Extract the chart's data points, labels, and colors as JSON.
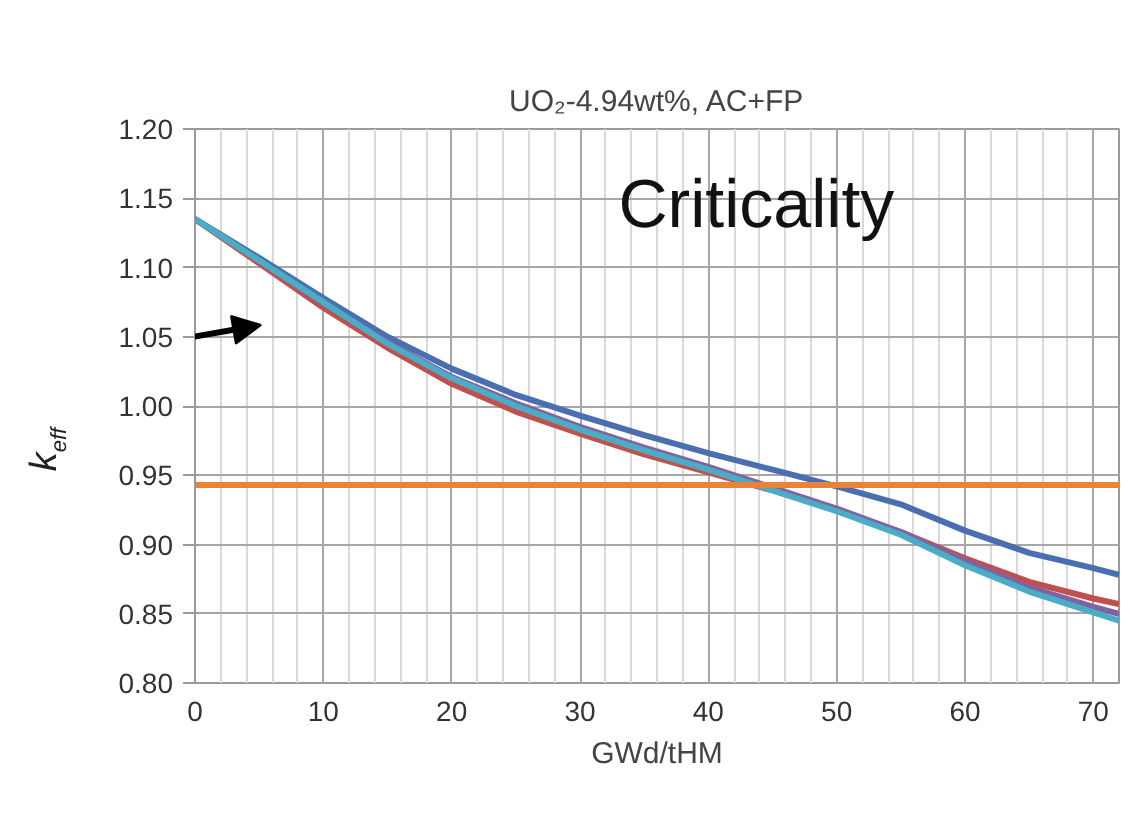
{
  "chart_data": {
    "type": "line",
    "title": "UO₂-4.94wt%, AC+FP",
    "xlabel": "GWd/tHM",
    "ylabel": "k$_{eff}$",
    "annotations": [
      "Criticality"
    ],
    "x": [
      0,
      5,
      10,
      15,
      20,
      25,
      30,
      35,
      40,
      45,
      50,
      55,
      60,
      65,
      70,
      72
    ],
    "series": [
      {
        "color": "#4a6fb0",
        "values": [
          1.135,
          1.107,
          1.078,
          1.05,
          1.027,
          1.008,
          0.993,
          0.979,
          0.966,
          0.954,
          0.942,
          0.929,
          0.91,
          0.894,
          0.883,
          0.878
        ]
      },
      {
        "color": "#c0504d",
        "values": [
          1.135,
          1.103,
          1.071,
          1.042,
          1.016,
          0.996,
          0.98,
          0.965,
          0.952,
          0.939,
          0.925,
          0.909,
          0.89,
          0.873,
          0.861,
          0.857
        ]
      },
      {
        "color": "#8064a2",
        "values": [
          1.135,
          1.105,
          1.074,
          1.046,
          1.021,
          1.002,
          0.985,
          0.97,
          0.956,
          0.941,
          0.926,
          0.909,
          0.888,
          0.869,
          0.855,
          0.85
        ]
      },
      {
        "color": "#4bacc6",
        "values": [
          1.135,
          1.105,
          1.075,
          1.045,
          1.02,
          1.0,
          0.983,
          0.968,
          0.954,
          0.939,
          0.924,
          0.907,
          0.885,
          0.866,
          0.851,
          0.845
        ]
      }
    ],
    "ref_lines": [
      {
        "axis": "y",
        "value": 0.943,
        "color": "#e8843a"
      }
    ],
    "xlim": [
      0,
      72
    ],
    "xticks": [
      0,
      10,
      20,
      30,
      40,
      50,
      60,
      70
    ],
    "ylim": [
      0.8,
      1.2
    ],
    "yticks": [
      {
        "value": 0.8,
        "label": "0.80"
      },
      {
        "value": 0.85,
        "label": "0.85"
      },
      {
        "value": 0.9,
        "label": "0.90"
      },
      {
        "value": 0.95,
        "label": "0.95"
      },
      {
        "value": 1.0,
        "label": "1.00"
      },
      {
        "value": 1.05,
        "label": "1.05"
      },
      {
        "value": 1.1,
        "label": "1.10"
      },
      {
        "value": 1.15,
        "label": "1.15"
      },
      {
        "value": 1.2,
        "label": "1.20"
      }
    ],
    "grid": true
  }
}
